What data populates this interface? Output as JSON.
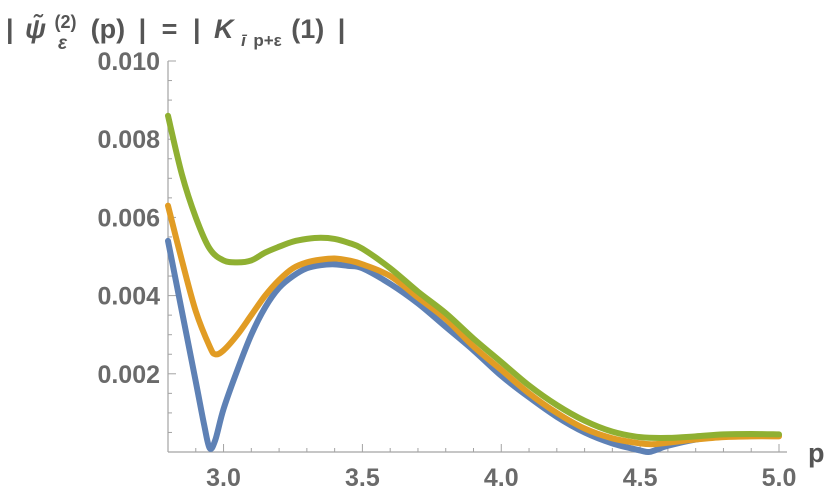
{
  "chart_data": {
    "type": "line",
    "title": "",
    "ylabel": "| ψ̃ε(2)(p) | = | Kīp+ε(1) |",
    "ylabel_parts": {
      "bar_left": "|",
      "psi": "ψ̃",
      "superscript": "(2)",
      "subscript": "ε",
      "arg": "(p)",
      "bar_right": "|",
      "equals": "=",
      "bar2_left": "|",
      "k": "K",
      "k_sub_i": "ī",
      "k_sub_rest": "p+ε",
      "k_arg": "(1)",
      "bar2_right": "|"
    },
    "xlabel": "p",
    "xlim": [
      2.8,
      5.0
    ],
    "ylim": [
      0,
      0.01
    ],
    "x_ticks": [
      {
        "value": 3.0,
        "label": "3.0"
      },
      {
        "value": 3.5,
        "label": "3.5"
      },
      {
        "value": 4.0,
        "label": "4.0"
      },
      {
        "value": 4.5,
        "label": "4.5"
      },
      {
        "value": 5.0,
        "label": "5.0"
      }
    ],
    "y_ticks": [
      {
        "value": 0.002,
        "label": "0.002"
      },
      {
        "value": 0.004,
        "label": "0.004"
      },
      {
        "value": 0.006,
        "label": "0.006"
      },
      {
        "value": 0.008,
        "label": "0.008"
      },
      {
        "value": 0.01,
        "label": "0.010"
      }
    ],
    "series": [
      {
        "name": "series-blue",
        "color": "#5e81b5",
        "points": [
          [
            2.8,
            0.0054
          ],
          [
            2.85,
            0.0036
          ],
          [
            2.9,
            0.0018
          ],
          [
            2.93,
            0.0007
          ],
          [
            2.95,
            0.0001
          ],
          [
            2.97,
            0.0003
          ],
          [
            3.0,
            0.0011
          ],
          [
            3.05,
            0.0021
          ],
          [
            3.1,
            0.003
          ],
          [
            3.15,
            0.0037
          ],
          [
            3.2,
            0.0042
          ],
          [
            3.25,
            0.0045
          ],
          [
            3.3,
            0.0047
          ],
          [
            3.35,
            0.00478
          ],
          [
            3.4,
            0.0048
          ],
          [
            3.45,
            0.00476
          ],
          [
            3.5,
            0.0047
          ],
          [
            3.6,
            0.0043
          ],
          [
            3.7,
            0.0038
          ],
          [
            3.8,
            0.0032
          ],
          [
            3.9,
            0.0026
          ],
          [
            4.0,
            0.00195
          ],
          [
            4.1,
            0.0014
          ],
          [
            4.2,
            0.0009
          ],
          [
            4.3,
            0.0005
          ],
          [
            4.4,
            0.00022
          ],
          [
            4.5,
            4e-05
          ],
          [
            4.53,
            0.0
          ],
          [
            4.56,
            6e-05
          ],
          [
            4.6,
            0.00016
          ],
          [
            4.7,
            0.00032
          ],
          [
            4.8,
            0.0004
          ],
          [
            4.9,
            0.00042
          ],
          [
            5.0,
            0.00042
          ]
        ]
      },
      {
        "name": "series-orange",
        "color": "#e19c24",
        "points": [
          [
            2.8,
            0.0063
          ],
          [
            2.85,
            0.0049
          ],
          [
            2.9,
            0.0036
          ],
          [
            2.95,
            0.0027
          ],
          [
            2.97,
            0.0025
          ],
          [
            3.0,
            0.0026
          ],
          [
            3.05,
            0.003
          ],
          [
            3.1,
            0.0035
          ],
          [
            3.15,
            0.004
          ],
          [
            3.2,
            0.0044
          ],
          [
            3.25,
            0.0047
          ],
          [
            3.3,
            0.00485
          ],
          [
            3.35,
            0.00492
          ],
          [
            3.4,
            0.00495
          ],
          [
            3.45,
            0.0049
          ],
          [
            3.5,
            0.0048
          ],
          [
            3.6,
            0.0045
          ],
          [
            3.7,
            0.00395
          ],
          [
            3.8,
            0.0034
          ],
          [
            3.9,
            0.0027
          ],
          [
            4.0,
            0.0021
          ],
          [
            4.1,
            0.0015
          ],
          [
            4.2,
            0.001
          ],
          [
            4.3,
            0.0006
          ],
          [
            4.4,
            0.00035
          ],
          [
            4.5,
            0.00022
          ],
          [
            4.55,
            0.0002
          ],
          [
            4.6,
            0.00024
          ],
          [
            4.7,
            0.00032
          ],
          [
            4.8,
            0.00038
          ],
          [
            4.9,
            0.0004
          ],
          [
            5.0,
            0.0004
          ]
        ]
      },
      {
        "name": "series-green",
        "color": "#8fb032",
        "points": [
          [
            2.8,
            0.0086
          ],
          [
            2.85,
            0.0071
          ],
          [
            2.9,
            0.006
          ],
          [
            2.95,
            0.0052
          ],
          [
            3.0,
            0.0049
          ],
          [
            3.05,
            0.00485
          ],
          [
            3.1,
            0.0049
          ],
          [
            3.15,
            0.0051
          ],
          [
            3.2,
            0.00525
          ],
          [
            3.25,
            0.00538
          ],
          [
            3.3,
            0.00545
          ],
          [
            3.35,
            0.00548
          ],
          [
            3.4,
            0.00545
          ],
          [
            3.45,
            0.00535
          ],
          [
            3.5,
            0.0052
          ],
          [
            3.6,
            0.0047
          ],
          [
            3.7,
            0.0041
          ],
          [
            3.8,
            0.00355
          ],
          [
            3.9,
            0.0029
          ],
          [
            4.0,
            0.0023
          ],
          [
            4.1,
            0.0017
          ],
          [
            4.2,
            0.0012
          ],
          [
            4.3,
            0.0008
          ],
          [
            4.4,
            0.00052
          ],
          [
            4.5,
            0.00038
          ],
          [
            4.6,
            0.00036
          ],
          [
            4.7,
            0.0004
          ],
          [
            4.8,
            0.00045
          ],
          [
            4.9,
            0.00046
          ],
          [
            5.0,
            0.00045
          ]
        ]
      }
    ]
  }
}
